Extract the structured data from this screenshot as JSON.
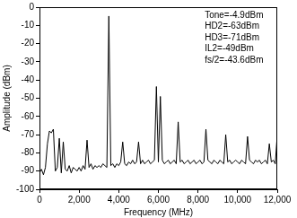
{
  "chart_data": {
    "type": "line",
    "x_label": "Frequency (MHz)",
    "y_label": "Amplitude (dBm)",
    "annotations": [
      "Tone=-4.9dBm",
      "HD2=-63dBm",
      "HD3=-71dBm",
      "IL2=-49dBm",
      "fs/2=-43.6dBm"
    ],
    "x": [
      0,
      100,
      200,
      300,
      400,
      500,
      600,
      700,
      800,
      900,
      1000,
      1100,
      1200,
      1300,
      1400,
      1500,
      1600,
      1700,
      1800,
      1900,
      2000,
      2100,
      2200,
      2300,
      2400,
      2500,
      2600,
      2700,
      2800,
      2900,
      3000,
      3100,
      3200,
      3300,
      3400,
      3500,
      3600,
      3700,
      3800,
      3900,
      4000,
      4100,
      4200,
      4300,
      4400,
      4500,
      4600,
      4700,
      4800,
      4900,
      5000,
      5100,
      5200,
      5300,
      5400,
      5500,
      5600,
      5700,
      5800,
      5900,
      6000,
      6100,
      6200,
      6300,
      6400,
      6500,
      6600,
      6700,
      6800,
      6900,
      7000,
      7100,
      7200,
      7300,
      7400,
      7500,
      7600,
      7700,
      7800,
      7900,
      8000,
      8100,
      8200,
      8300,
      8400,
      8500,
      8600,
      8700,
      8800,
      8900,
      9000,
      9100,
      9200,
      9300,
      9400,
      9500,
      9600,
      9700,
      9800,
      9900,
      10000,
      10100,
      10200,
      10300,
      10400,
      10500,
      10600,
      10700,
      10800,
      10900,
      11000,
      11100,
      11200,
      11300,
      11400,
      11500,
      11600,
      11700,
      11800,
      11900,
      12000
    ],
    "values": [
      -91,
      -89,
      -92,
      -88,
      -75,
      -68,
      -69,
      -67,
      -90,
      -88,
      -72,
      -91,
      -74,
      -89,
      -90,
      -87,
      -91,
      -88,
      -89,
      -90,
      -88,
      -90,
      -87,
      -89,
      -73,
      -88,
      -86,
      -89,
      -87,
      -88,
      -87,
      -88,
      -86,
      -87,
      -88,
      -4.9,
      -87,
      -86,
      -88,
      -86,
      -87,
      -85,
      -74,
      -86,
      -87,
      -85,
      -86,
      -84,
      -86,
      -85,
      -74,
      -86,
      -84,
      -86,
      -85,
      -84,
      -86,
      -85,
      -84,
      -43.6,
      -85,
      -49,
      -84,
      -86,
      -85,
      -84,
      -86,
      -85,
      -84,
      -86,
      -63,
      -85,
      -84,
      -86,
      -85,
      -84,
      -86,
      -85,
      -84,
      -86,
      -85,
      -84,
      -86,
      -85,
      -67,
      -84,
      -85,
      -86,
      -84,
      -85,
      -86,
      -84,
      -85,
      -86,
      -70,
      -85,
      -84,
      -86,
      -85,
      -84,
      -85,
      -86,
      -84,
      -85,
      -86,
      -71,
      -84,
      -85,
      -86,
      -84,
      -85,
      -84,
      -86,
      -85,
      -84,
      -86,
      -75,
      -85,
      -84,
      -86,
      -70
    ],
    "color": "#000000",
    "xlim": [
      0,
      12000
    ],
    "xticks": [
      0,
      2000,
      4000,
      6000,
      8000,
      10000,
      12000
    ],
    "ylim": [
      -100,
      0
    ],
    "yticks": [
      -100,
      -90,
      -80,
      -70,
      -60,
      -50,
      -40,
      -30,
      -20,
      -10,
      0
    ],
    "grid": false
  }
}
